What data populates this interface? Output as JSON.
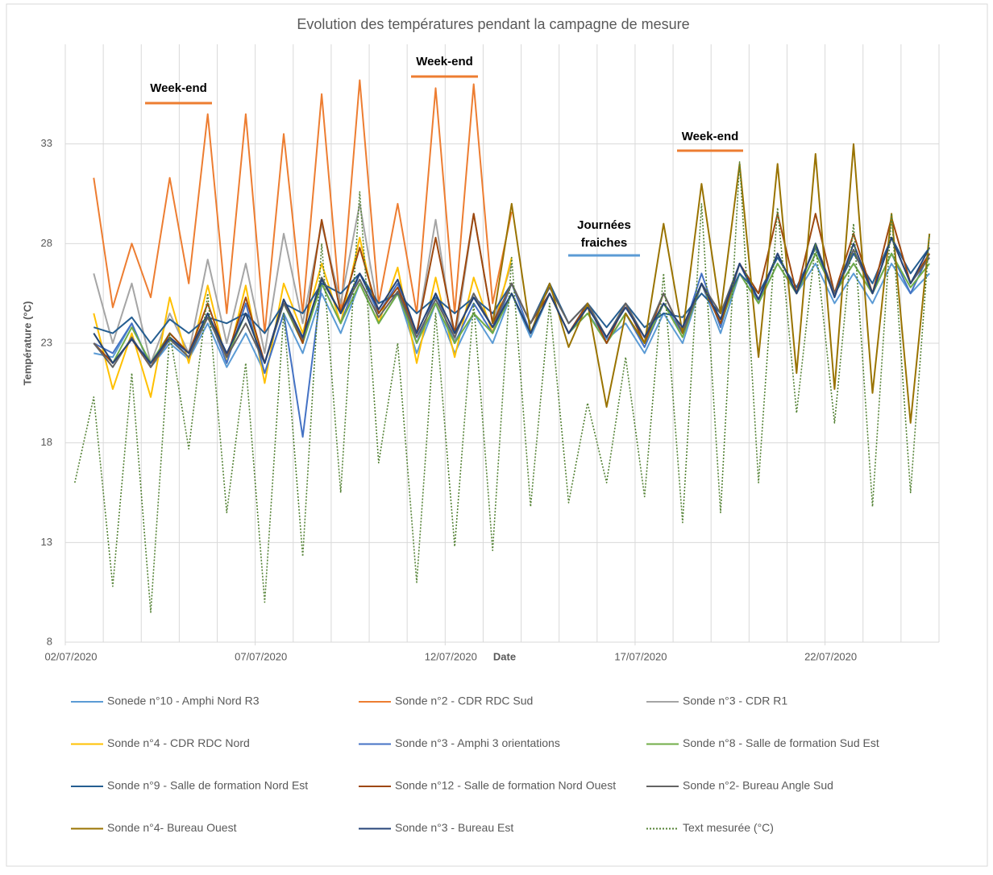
{
  "chart_data": {
    "type": "line",
    "title": "Evolution des températures pendant la campagne de mesure",
    "x_label": "Date",
    "y_label": "Température (°C)",
    "xlim": [
      0,
      23
    ],
    "xticks": [
      {
        "value": 0,
        "label": "02/07/2020"
      },
      {
        "value": 5,
        "label": "07/07/2020"
      },
      {
        "value": 10,
        "label": "12/07/2020"
      },
      {
        "value": 15,
        "label": "17/07/2020"
      },
      {
        "value": 20,
        "label": "22/07/2020"
      }
    ],
    "xgrid": [
      0,
      1,
      2,
      3,
      4,
      5,
      6,
      7,
      8,
      9,
      10,
      11,
      12,
      13,
      14,
      15,
      16,
      17,
      18,
      19,
      20,
      21,
      22,
      23
    ],
    "ylim": [
      8,
      38
    ],
    "yticks": [
      8,
      13,
      18,
      23,
      28,
      33
    ],
    "grid": true,
    "legend_position": "bottom",
    "x": [
      0.25,
      0.75,
      1.25,
      1.75,
      2.25,
      2.75,
      3.25,
      3.75,
      4.25,
      4.75,
      5.25,
      5.75,
      6.25,
      6.75,
      7.25,
      7.75,
      8.25,
      8.75,
      9.25,
      9.75,
      10.25,
      10.75,
      11.25,
      11.75,
      12.25,
      12.75,
      13.25,
      13.75,
      14.25,
      14.75,
      15.25,
      15.75,
      16.25,
      16.75,
      17.25,
      17.75,
      18.25,
      18.75,
      19.25,
      19.75,
      20.25,
      20.75,
      21.25,
      21.75,
      22.25,
      22.75
    ],
    "series": [
      {
        "name": "Sonede n°10 - Amphi Nord R3",
        "color": "#5b9bd5",
        "values": [
          null,
          22.5,
          22.3,
          24.0,
          21.8,
          23.0,
          22.2,
          24.0,
          21.8,
          23.5,
          21.5,
          24.5,
          22.5,
          25.5,
          23.5,
          26.0,
          24.0,
          25.5,
          22.5,
          25.0,
          22.5,
          24.5,
          23.0,
          25.5,
          23.3,
          25.5,
          23.5,
          24.5,
          23.2,
          24.0,
          22.5,
          24.5,
          23.0,
          26.0,
          23.5,
          26.5,
          25.0,
          27.0,
          25.5,
          27.0,
          25.0,
          26.5,
          25.0,
          27.0,
          25.5,
          26.5
        ]
      },
      {
        "name": "Sonde n°2 - CDR RDC Sud",
        "color": "#ed7d31",
        "values": [
          null,
          31.3,
          24.8,
          28,
          25.3,
          31.3,
          26,
          34.5,
          24.5,
          34.5,
          23.5,
          33.5,
          24.5,
          35.5,
          24.5,
          36.2,
          25,
          30,
          24.5,
          35.8,
          24.5,
          36,
          25,
          29.6,
          null,
          null,
          null,
          null,
          null,
          null,
          null,
          null,
          null,
          null,
          null,
          null,
          null,
          null,
          null,
          null,
          null,
          null,
          null,
          null,
          null,
          null
        ]
      },
      {
        "name": "Sonde n°3 - CDR R1",
        "color": "#a5a5a5",
        "values": [
          null,
          26.5,
          23,
          26,
          22,
          24.5,
          22.5,
          27.2,
          23,
          27,
          22.5,
          28.5,
          24,
          29,
          25,
          30,
          24.5,
          26,
          23.5,
          29.2,
          23,
          29.5,
          24,
          27,
          null,
          null,
          null,
          null,
          null,
          null,
          null,
          null,
          null,
          null,
          null,
          null,
          null,
          null,
          null,
          null,
          null,
          null,
          null,
          null,
          null,
          null
        ]
      },
      {
        "name": "Sonde n°4 - CDR RDC Nord",
        "color": "#ffc000",
        "values": [
          null,
          24.5,
          20.7,
          23.5,
          20.3,
          25.3,
          22,
          25.9,
          22,
          25.9,
          21,
          26,
          23.5,
          27,
          24,
          28.3,
          24,
          26.8,
          22,
          26.3,
          22.3,
          26.3,
          23.5,
          27.3,
          null,
          null,
          null,
          null,
          null,
          null,
          null,
          null,
          null,
          null,
          null,
          null,
          null,
          null,
          null,
          null,
          null,
          null,
          null,
          null,
          null,
          null
        ]
      },
      {
        "name": "Sonde n°3 - Amphi 3 orientations",
        "color": "#4472c4",
        "values": [
          null,
          23,
          22.5,
          24.0,
          21.8,
          23.3,
          22.3,
          24.5,
          22,
          25,
          21.5,
          24.5,
          18.3,
          26,
          24,
          26.5,
          24.5,
          26,
          23,
          25.5,
          23,
          25,
          23.5,
          26,
          23.5,
          25.5,
          23.5,
          25,
          23,
          24.5,
          22.8,
          25,
          23.5,
          26.5,
          23.8,
          27,
          25,
          27.5,
          25.5,
          27.5,
          25.5,
          27,
          25.5,
          27.5,
          25.5,
          27.5
        ]
      },
      {
        "name": "Sonde n°8 - Salle de formation Sud Est",
        "color": "#70ad47",
        "values": [
          null,
          23.5,
          22,
          23.8,
          22,
          23.5,
          22.5,
          24.5,
          22.3,
          24.5,
          22,
          25,
          23,
          26,
          24,
          26,
          24,
          25.5,
          23,
          25,
          23,
          24.5,
          23.5,
          25.5,
          23.5,
          25.5,
          23.5,
          24.5,
          23,
          24.5,
          23,
          25,
          23.3,
          26,
          24,
          26.5,
          25,
          27,
          25.5,
          27.5,
          25.5,
          27,
          25.5,
          27.5,
          25.8,
          27
        ]
      },
      {
        "name": "Sonde n°9 - Salle de formation Nord Est",
        "color": "#255e91",
        "values": [
          null,
          23.8,
          23.5,
          24.3,
          23,
          24.2,
          23.5,
          24.3,
          24,
          24.5,
          23.5,
          25,
          24.5,
          26,
          25.5,
          26.5,
          25,
          25.5,
          24.5,
          25.3,
          24.5,
          25.3,
          24.5,
          26,
          24,
          26,
          24,
          25,
          23.8,
          25,
          23.8,
          24.5,
          24.3,
          25.5,
          24.5,
          26.5,
          25.5,
          27.3,
          25.8,
          27.8,
          25.5,
          27.5,
          26,
          28.3,
          26.5,
          27.8
        ]
      },
      {
        "name": "Sonde n°12 - Salle de formation Nord Ouest",
        "color": "#9e480e",
        "values": [
          null,
          23,
          22,
          23.2,
          21.8,
          23.5,
          22.5,
          25,
          22.3,
          25.3,
          22,
          25.2,
          23,
          29.2,
          24.5,
          27.8,
          24.5,
          25.8,
          23.5,
          28.3,
          23.5,
          29.5,
          24,
          26,
          24,
          25.5,
          23.5,
          25,
          23,
          25,
          23,
          25.5,
          23.5,
          26,
          24,
          27,
          25.5,
          29.5,
          25.5,
          29.5,
          25.5,
          28.5,
          25.5,
          29.3,
          26,
          27.5
        ]
      },
      {
        "name": "Sonde n°2- Bureau Angle Sud",
        "color": "#636363",
        "values": [
          null,
          23,
          21.8,
          23.3,
          21.8,
          23.2,
          22.3,
          24.3,
          22.3,
          24,
          22,
          25,
          23.2,
          26.3,
          24.5,
          26.2,
          24.3,
          25.6,
          23.3,
          25.2,
          23.3,
          25.5,
          23.8,
          26,
          24,
          25.8,
          24,
          25,
          23.3,
          25,
          23.3,
          25.5,
          23.5,
          26,
          24.5,
          27,
          25.2,
          27.5,
          25.5,
          28,
          25.5,
          27.7,
          25.5,
          28.3,
          26,
          27.3
        ]
      },
      {
        "name": "Sonde n°4- Bureau Ouest",
        "color": "#997300",
        "values": [
          null,
          null,
          null,
          null,
          null,
          null,
          null,
          null,
          null,
          null,
          null,
          null,
          null,
          null,
          null,
          null,
          null,
          null,
          null,
          null,
          null,
          null,
          24,
          30,
          23.5,
          26,
          22.8,
          25,
          19.8,
          24.5,
          23,
          29,
          23.5,
          31,
          24.5,
          32,
          22.3,
          32,
          21.5,
          32.5,
          20.7,
          33,
          20.5,
          29.5,
          19,
          28.5
        ]
      },
      {
        "name": "Sonde n°3 - Bureau Est",
        "color": "#264478",
        "values": [
          null,
          23.5,
          22,
          23.2,
          22,
          23.3,
          22.5,
          24.5,
          22.5,
          24.5,
          22,
          25.2,
          23.3,
          26.2,
          24.5,
          26.5,
          24.7,
          26.2,
          23.5,
          25.5,
          23.5,
          25.3,
          23.8,
          25.5,
          23.5,
          25.5,
          23.5,
          24.8,
          23.3,
          24.8,
          23.3,
          25,
          23.8,
          26,
          24.2,
          27,
          25.2,
          27.5,
          25.5,
          28,
          25.3,
          28,
          25.5,
          28.3,
          26,
          27.8
        ]
      },
      {
        "name": "Text mesurée (°C)",
        "color": "#548235",
        "dotted": true,
        "values": [
          16,
          20.3,
          10.8,
          21.5,
          9.5,
          23.5,
          17.7,
          25.5,
          14.5,
          22,
          10,
          24.5,
          12.3,
          28,
          15.5,
          30.6,
          17,
          23,
          11,
          24.5,
          12.8,
          25,
          12.6,
          27.3,
          14.8,
          25,
          15,
          20,
          16,
          22.3,
          15.3,
          26.5,
          14,
          30,
          14.5,
          32.1,
          16,
          29.8,
          19.5,
          28,
          19,
          29,
          14.8,
          29.5,
          15.5,
          28.5
        ]
      }
    ],
    "annotations": [
      {
        "lines": [
          "Week-end"
        ],
        "color": "#ed7d31"
      },
      {
        "lines": [
          "Week-end"
        ],
        "color": "#ed7d31"
      },
      {
        "lines": [
          "Journées",
          "fraiches"
        ],
        "color": "#5b9bd5"
      },
      {
        "lines": [
          "Week-end"
        ],
        "color": "#ed7d31"
      }
    ]
  }
}
